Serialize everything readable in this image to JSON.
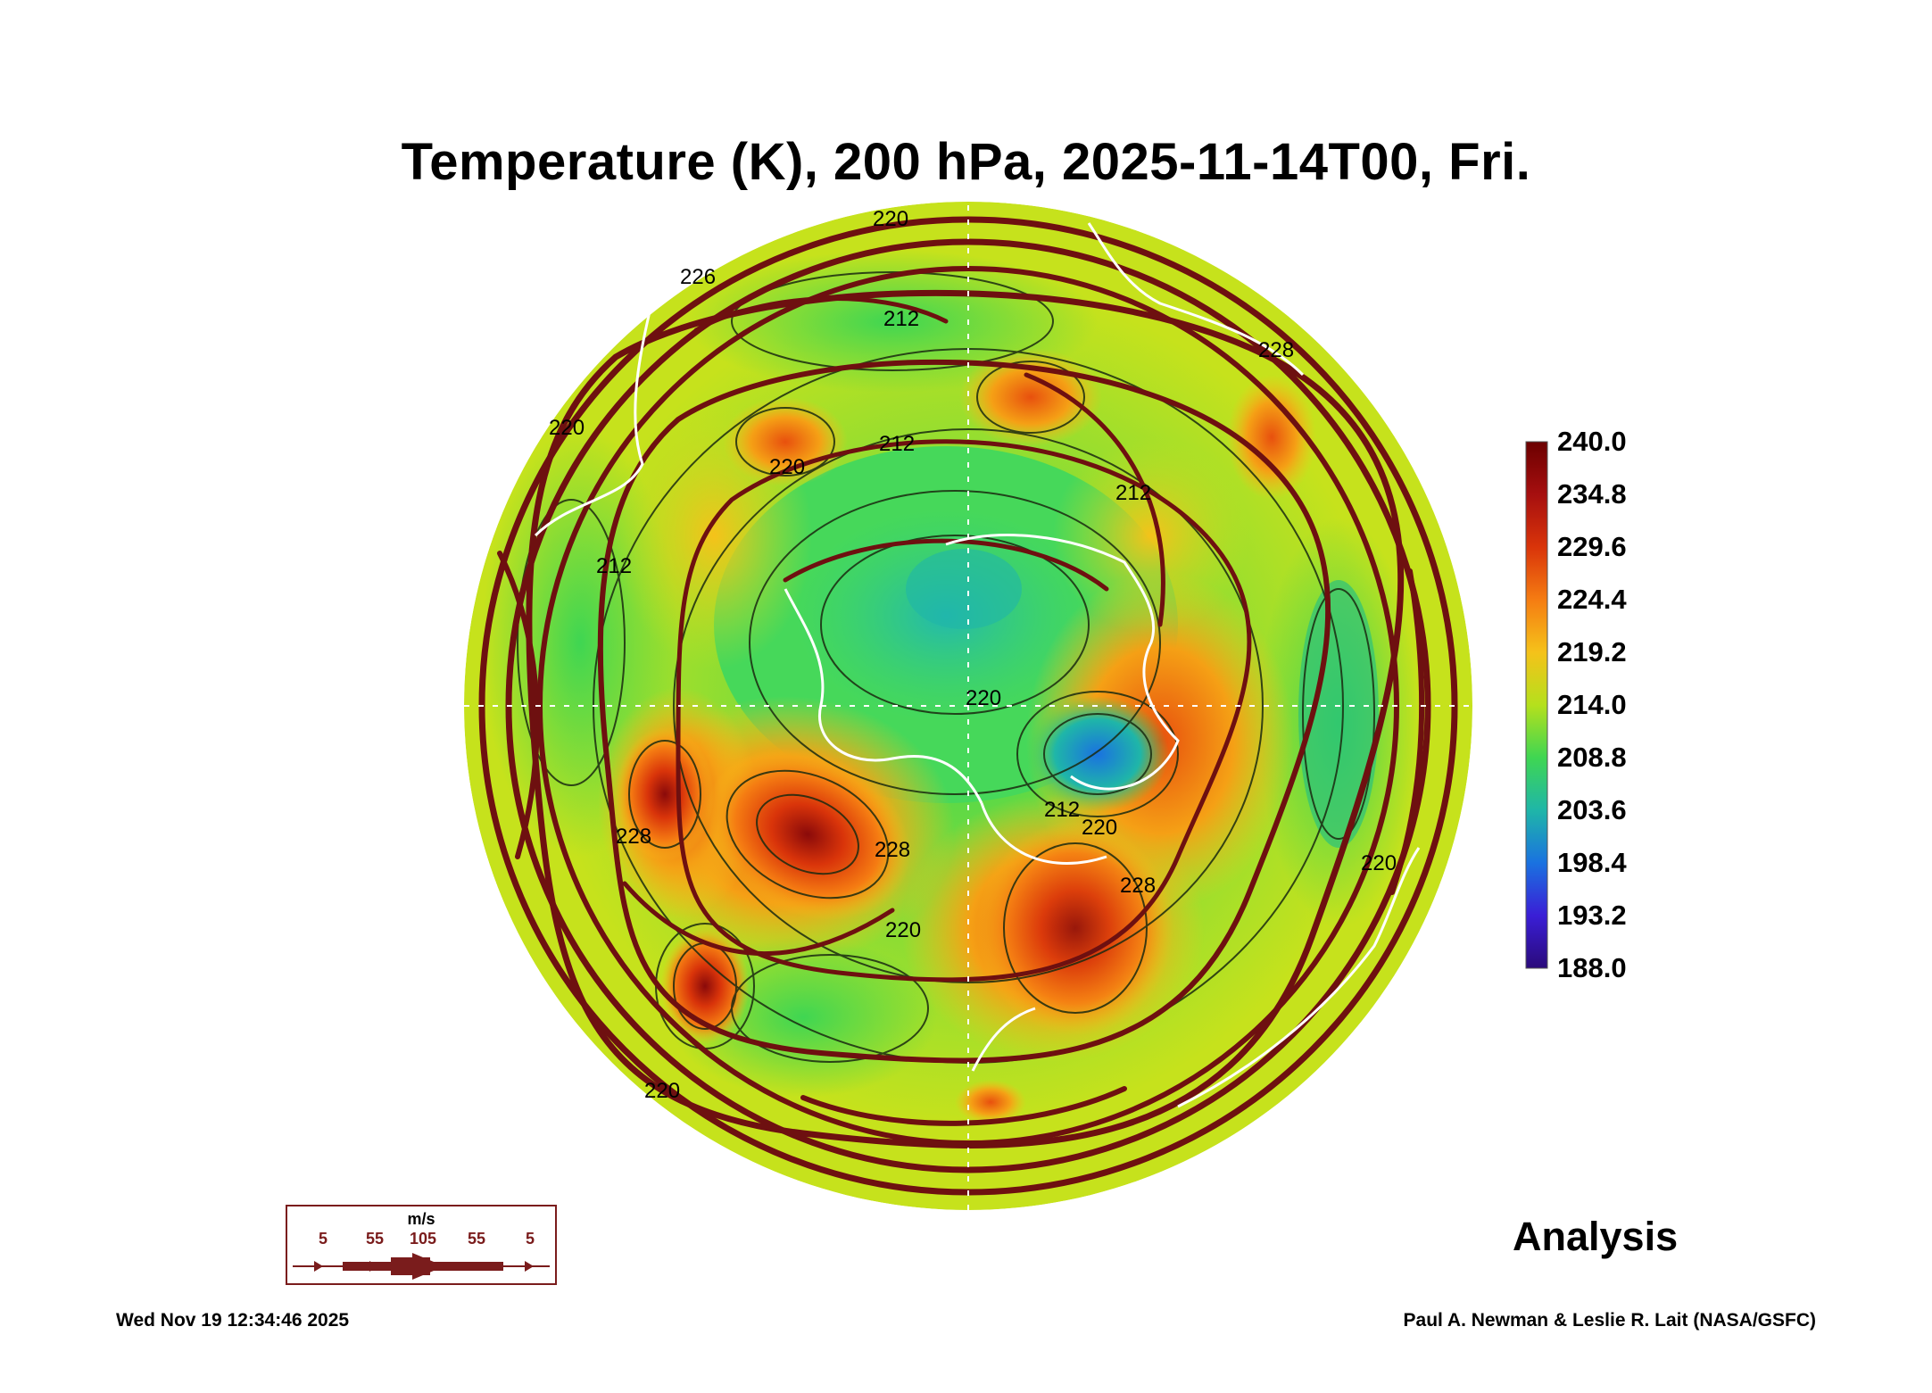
{
  "title": "Temperature (K), 200 hPa, 2025-11-14T00, Fri.",
  "colorbar": {
    "labels": [
      "240.0",
      "234.8",
      "229.6",
      "224.4",
      "219.2",
      "214.0",
      "208.8",
      "203.6",
      "198.4",
      "193.2",
      "188.0"
    ],
    "colors": [
      "#6b0000",
      "#a60f0f",
      "#d9340a",
      "#f57c12",
      "#f5c21a",
      "#b5e01c",
      "#3fd652",
      "#1fb6a8",
      "#1a72e0",
      "#3a1ed6",
      "#2a0a7a"
    ]
  },
  "contour_labels": [
    "220",
    "226",
    "212",
    "220",
    "212",
    "212",
    "212",
    "220",
    "228",
    "228",
    "228",
    "220",
    "212",
    "220",
    "228",
    "220",
    "220",
    "220"
  ],
  "wind_legend": {
    "unit": "m/s",
    "labels": [
      "5",
      "55",
      "105",
      "55",
      "5"
    ]
  },
  "analysis_label": "Analysis",
  "footer_left": "Wed Nov 19 12:34:46 2025",
  "footer_right": "Paul A. Newman & Leslie R. Lait (NASA/GSFC)"
}
